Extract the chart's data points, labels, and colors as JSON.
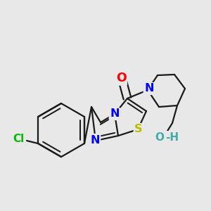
{
  "bg_color": "#e8e8e8",
  "bond_color": "#1a1a1a",
  "bond_width": 1.6,
  "atom_colors": {
    "Cl": "#00bb00",
    "N": "#0000ff",
    "O": "#ff0000",
    "OH_O": "#44aaaa",
    "OH_H": "#44aaaa",
    "S": "#bbbb00"
  },
  "font_size": 10.5
}
